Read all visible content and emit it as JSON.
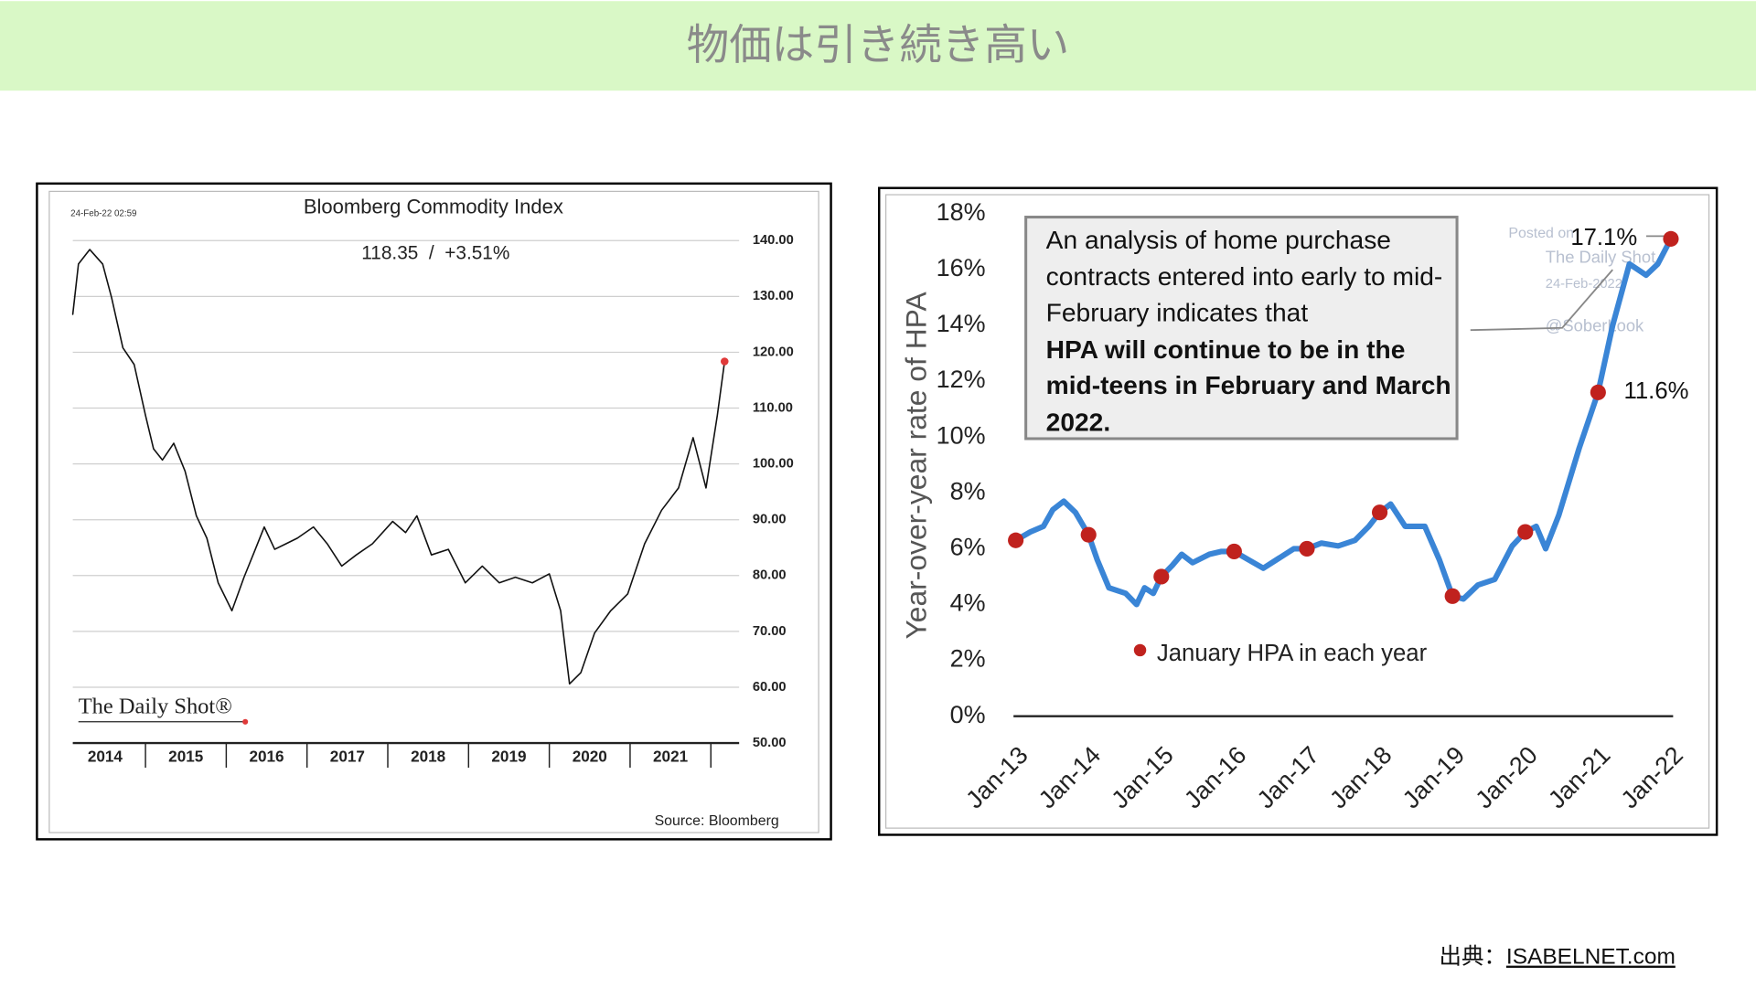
{
  "header": {
    "title": "物価は引き続き高い"
  },
  "source": {
    "label": "出典：",
    "link": "ISABELNET.com"
  },
  "chart_data": [
    {
      "type": "line",
      "title": "Bloomberg Commodity Index",
      "subtitle": "118.35  /  +3.51%",
      "timestamp": "24-Feb-22 02:59",
      "logo": "The Daily Shot®",
      "source": "Source: Bloomberg",
      "highlight_color": "#e03a3a",
      "x": [
        2014.1,
        2014.17,
        2014.31,
        2014.47,
        2014.58,
        2014.72,
        2014.86,
        2015.0,
        2015.1,
        2015.21,
        2015.35,
        2015.49,
        2015.63,
        2015.76,
        2015.9,
        2016.07,
        2016.22,
        2016.36,
        2016.47,
        2016.6,
        2016.74,
        2016.88,
        2017.08,
        2017.25,
        2017.43,
        2017.61,
        2017.81,
        2018.06,
        2018.22,
        2018.36,
        2018.54,
        2018.75,
        2018.96,
        2019.17,
        2019.38,
        2019.58,
        2019.79,
        2020.0,
        2020.14,
        2020.25,
        2020.39,
        2020.56,
        2020.76,
        2020.97,
        2021.18,
        2021.39,
        2021.6,
        2021.78,
        2021.94,
        2022.08,
        2022.17
      ],
      "series": [
        {
          "color": "#111111",
          "values": [
            126.8,
            135.8,
            138.4,
            135.8,
            129.8,
            120.8,
            117.8,
            108.7,
            102.7,
            100.7,
            103.7,
            98.7,
            90.7,
            86.7,
            78.7,
            73.7,
            79.7,
            84.7,
            88.7,
            84.7,
            85.7,
            86.7,
            88.7,
            85.7,
            81.7,
            83.7,
            85.7,
            89.7,
            87.7,
            90.7,
            83.7,
            84.7,
            78.7,
            81.7,
            78.7,
            79.7,
            78.7,
            80.3,
            73.7,
            60.6,
            62.6,
            69.7,
            73.7,
            76.7,
            85.7,
            91.7,
            95.7,
            104.7,
            95.7,
            108.7,
            118.35
          ]
        }
      ],
      "xlim": [
        2014.1,
        2022.35
      ],
      "xticks": [
        2014,
        2015,
        2016,
        2017,
        2018,
        2019,
        2020,
        2021
      ],
      "ylim": [
        50,
        140
      ],
      "yticks": [
        {
          "value": 50,
          "label": "50.00"
        },
        {
          "value": 60,
          "label": "60.00"
        },
        {
          "value": 70,
          "label": "70.00"
        },
        {
          "value": 80,
          "label": "80.00"
        },
        {
          "value": 90,
          "label": "90.00"
        },
        {
          "value": 100,
          "label": "100.00"
        },
        {
          "value": 110,
          "label": "110.00"
        },
        {
          "value": 120,
          "label": "120.00"
        },
        {
          "value": 130,
          "label": "130.00"
        },
        {
          "value": 140,
          "label": "140.00"
        }
      ],
      "grid": true
    },
    {
      "type": "line",
      "ylabel": "Year-over-year rate of HPA",
      "annotation": {
        "text": "An analysis of home purchase contracts entered into early to mid-February indicates that",
        "bold": "HPA will continue to be in the mid-teens in February and March 2022."
      },
      "watermark": [
        "Posted on",
        "The Daily Shot",
        "24-Feb-2022",
        "@SoberLook"
      ],
      "x": [
        2013.0,
        2013.2,
        2013.38,
        2013.51,
        2013.66,
        2013.82,
        2014.0,
        2014.12,
        2014.28,
        2014.51,
        2014.66,
        2014.77,
        2014.89,
        2015.0,
        2015.15,
        2015.28,
        2015.43,
        2015.66,
        2015.82,
        2016.0,
        2016.2,
        2016.4,
        2016.58,
        2016.82,
        2017.0,
        2017.2,
        2017.43,
        2017.66,
        2017.85,
        2018.0,
        2018.15,
        2018.35,
        2018.62,
        2018.82,
        2019.0,
        2019.15,
        2019.35,
        2019.58,
        2019.82,
        2020.0,
        2020.15,
        2020.28,
        2020.46,
        2020.74,
        2021.0,
        2021.2,
        2021.43,
        2021.66,
        2021.82,
        2022.0
      ],
      "series": [
        {
          "color": "#3a85d6",
          "values": [
            6.3,
            6.6,
            6.8,
            7.4,
            7.7,
            7.3,
            6.5,
            5.6,
            4.6,
            4.4,
            4.0,
            4.6,
            4.4,
            5.0,
            5.4,
            5.8,
            5.5,
            5.8,
            5.9,
            5.9,
            5.6,
            5.3,
            5.6,
            6.0,
            6.0,
            6.2,
            6.1,
            6.3,
            6.8,
            7.3,
            7.6,
            6.8,
            6.8,
            5.6,
            4.3,
            4.2,
            4.7,
            4.9,
            6.1,
            6.6,
            6.8,
            6.0,
            7.2,
            9.6,
            11.6,
            14.0,
            16.2,
            15.8,
            16.2,
            17.1
          ]
        },
        {
          "name": "January HPA in each year",
          "color": "#c0221e",
          "marker": "dot",
          "x": [
            2013,
            2014,
            2015,
            2016,
            2017,
            2018,
            2019,
            2020,
            2021,
            2022
          ],
          "values": [
            6.3,
            6.5,
            5.0,
            5.9,
            6.0,
            7.3,
            4.3,
            6.6,
            11.6,
            17.1
          ],
          "value_labels": [
            null,
            null,
            null,
            null,
            null,
            null,
            null,
            null,
            "11.6%",
            "17.1%"
          ]
        }
      ],
      "xlim": [
        2013,
        2022
      ],
      "xticks": [
        {
          "value": 2013,
          "label": "Jan-13"
        },
        {
          "value": 2014,
          "label": "Jan-14"
        },
        {
          "value": 2015,
          "label": "Jan-15"
        },
        {
          "value": 2016,
          "label": "Jan-16"
        },
        {
          "value": 2017,
          "label": "Jan-17"
        },
        {
          "value": 2018,
          "label": "Jan-18"
        },
        {
          "value": 2019,
          "label": "Jan-19"
        },
        {
          "value": 2020,
          "label": "Jan-20"
        },
        {
          "value": 2021,
          "label": "Jan-21"
        },
        {
          "value": 2022,
          "label": "Jan-22"
        }
      ],
      "ylim": [
        0,
        18
      ],
      "yticks": [
        {
          "value": 0,
          "label": "0%"
        },
        {
          "value": 2,
          "label": "2%"
        },
        {
          "value": 4,
          "label": "4%"
        },
        {
          "value": 6,
          "label": "6%"
        },
        {
          "value": 8,
          "label": "8%"
        },
        {
          "value": 10,
          "label": "10%"
        },
        {
          "value": 12,
          "label": "12%"
        },
        {
          "value": 14,
          "label": "14%"
        },
        {
          "value": 16,
          "label": "16%"
        },
        {
          "value": 18,
          "label": "18%"
        }
      ]
    }
  ]
}
